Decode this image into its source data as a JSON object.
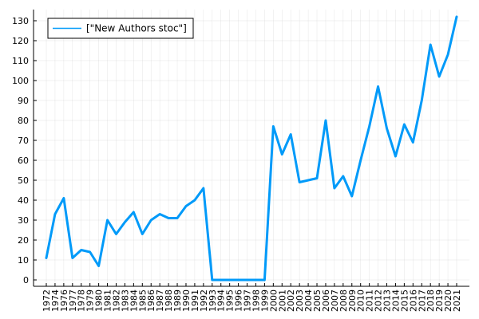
{
  "chart_data": {
    "type": "line",
    "title": "",
    "xlabel": "",
    "ylabel": "",
    "x": [
      "1972",
      "1974",
      "1976",
      "1977",
      "1978",
      "1979",
      "1980",
      "1981",
      "1982",
      "1983",
      "1984",
      "1985",
      "1986",
      "1987",
      "1988",
      "1989",
      "1990",
      "1991",
      "1992",
      "1993",
      "1994",
      "1995",
      "1996",
      "1997",
      "1998",
      "1999",
      "2000",
      "2001",
      "2002",
      "2003",
      "2004",
      "2005",
      "2006",
      "2007",
      "2008",
      "2009",
      "2010",
      "2011",
      "2012",
      "2013",
      "2014",
      "2015",
      "2016",
      "2017",
      "2018",
      "2019",
      "2020",
      "2021"
    ],
    "series": [
      {
        "name": "[\"New Authors stoc\"]",
        "color": "#009af9",
        "values": [
          11,
          33,
          41,
          11,
          15,
          14,
          7,
          30,
          23,
          29,
          34,
          23,
          30,
          33,
          31,
          31,
          37,
          40,
          46,
          0,
          0,
          0,
          0,
          0,
          0,
          0,
          77,
          63,
          73,
          49,
          50,
          51,
          80,
          46,
          52,
          42,
          60,
          77,
          97,
          76,
          62,
          78,
          69,
          90,
          118,
          102,
          113,
          132
        ]
      }
    ],
    "ylim": [
      0,
      130
    ],
    "yticks": [
      0,
      10,
      20,
      30,
      40,
      50,
      60,
      70,
      80,
      90,
      100,
      110,
      120,
      130
    ],
    "grid": true,
    "legend_position": "top-left"
  }
}
